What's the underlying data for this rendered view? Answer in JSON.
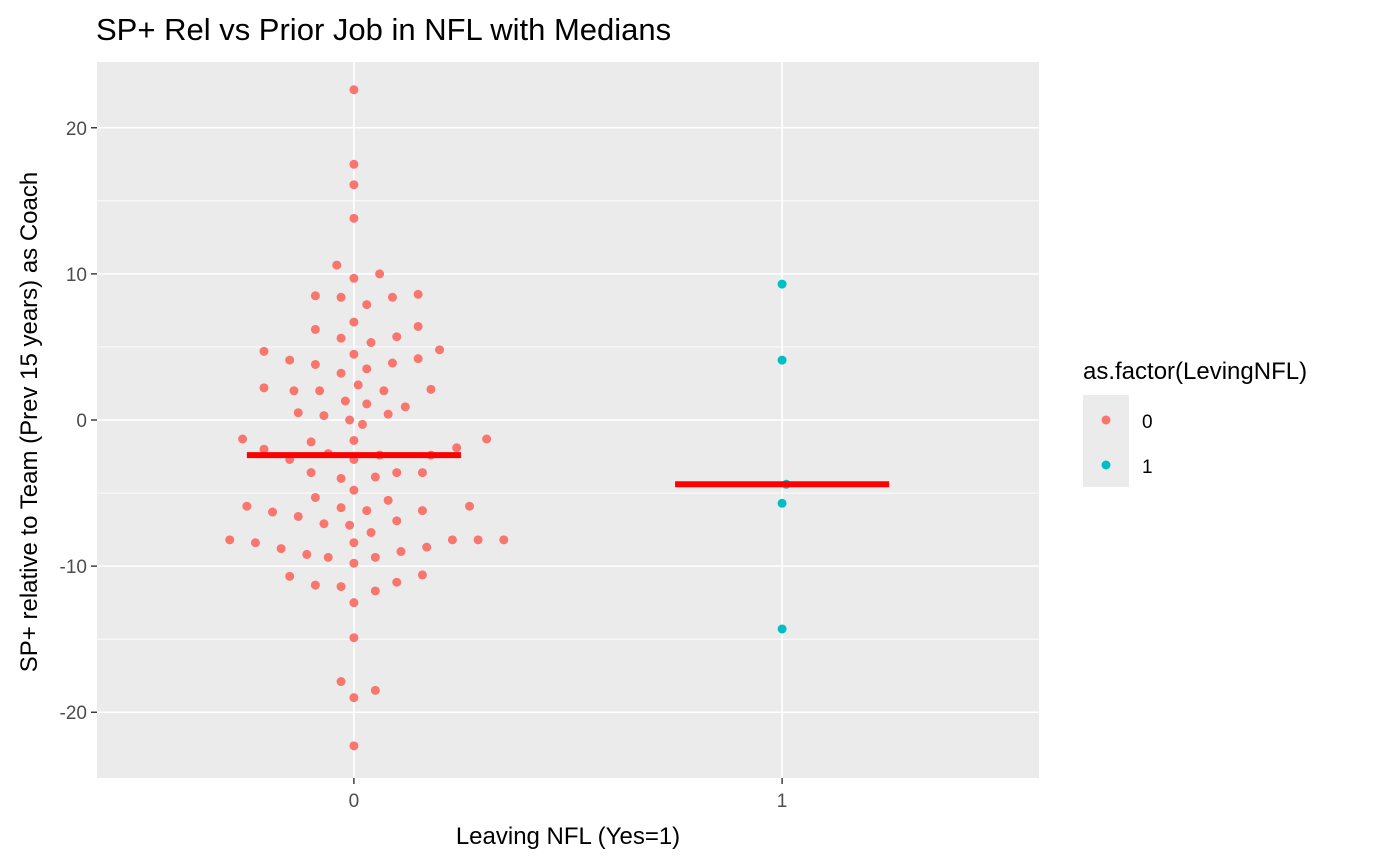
{
  "chart_data": {
    "type": "scatter",
    "subtype": "dotplot",
    "title": "SP+ Rel vs Prior Job in NFL with Medians",
    "xlabel": "Leaving NFL (Yes=1)",
    "ylabel": "SP+ relative to Team (Prev 15 years) as Coach",
    "categories": [
      "0",
      "1"
    ],
    "ylim": [
      -24.5,
      24.5
    ],
    "y_ticks": [
      -20,
      -10,
      0,
      10,
      20
    ],
    "y_tick_labels": [
      "-20",
      "-10",
      "0",
      "10",
      "20"
    ],
    "grid": true,
    "legend": {
      "title": "as.factor(LevingNFL)",
      "position": "right",
      "entries": [
        {
          "label": "0",
          "color": "#F8766D"
        },
        {
          "label": "1",
          "color": "#00BFC4"
        }
      ]
    },
    "series": [
      {
        "name": "0",
        "color": "#F8766D",
        "points": [
          [
            0,
            22.6
          ],
          [
            0,
            17.5
          ],
          [
            0,
            16.1
          ],
          [
            0,
            13.8
          ],
          [
            -0.04,
            10.6
          ],
          [
            0,
            9.7
          ],
          [
            0.06,
            10.0
          ],
          [
            -0.09,
            8.5
          ],
          [
            -0.03,
            8.4
          ],
          [
            0.03,
            7.9
          ],
          [
            0.09,
            8.4
          ],
          [
            0.15,
            8.6
          ],
          [
            -0.09,
            6.2
          ],
          [
            0,
            6.7
          ],
          [
            -0.03,
            5.6
          ],
          [
            0.04,
            5.3
          ],
          [
            0.1,
            5.7
          ],
          [
            0.15,
            6.4
          ],
          [
            -0.21,
            4.7
          ],
          [
            -0.15,
            4.1
          ],
          [
            -0.09,
            3.8
          ],
          [
            -0.03,
            3.2
          ],
          [
            0,
            4.5
          ],
          [
            0.03,
            3.5
          ],
          [
            0.09,
            3.9
          ],
          [
            0.15,
            4.2
          ],
          [
            0.2,
            4.8
          ],
          [
            -0.21,
            2.2
          ],
          [
            -0.14,
            2.0
          ],
          [
            -0.08,
            2.0
          ],
          [
            -0.02,
            1.3
          ],
          [
            0.01,
            2.4
          ],
          [
            0.03,
            1.1
          ],
          [
            0.07,
            2.0
          ],
          [
            0.12,
            0.9
          ],
          [
            0.18,
            2.1
          ],
          [
            -0.13,
            0.5
          ],
          [
            -0.07,
            0.3
          ],
          [
            -0.01,
            0.0
          ],
          [
            0.02,
            -0.3
          ],
          [
            0.08,
            0.4
          ],
          [
            -0.26,
            -1.3
          ],
          [
            -0.21,
            -2.0
          ],
          [
            -0.15,
            -2.7
          ],
          [
            -0.1,
            -1.5
          ],
          [
            -0.06,
            -2.3
          ],
          [
            0,
            -1.4
          ],
          [
            0,
            -2.7
          ],
          [
            0.06,
            -2.4
          ],
          [
            0.18,
            -2.4
          ],
          [
            0.24,
            -1.9
          ],
          [
            0.31,
            -1.3
          ],
          [
            -0.1,
            -3.6
          ],
          [
            -0.03,
            -4.0
          ],
          [
            0.05,
            -3.9
          ],
          [
            0.1,
            -3.6
          ],
          [
            0.16,
            -3.6
          ],
          [
            -0.09,
            -5.3
          ],
          [
            0,
            -4.8
          ],
          [
            0.08,
            -5.5
          ],
          [
            -0.25,
            -5.9
          ],
          [
            -0.19,
            -6.3
          ],
          [
            -0.13,
            -6.6
          ],
          [
            -0.07,
            -7.1
          ],
          [
            -0.03,
            -6.0
          ],
          [
            -0.01,
            -7.2
          ],
          [
            0.03,
            -6.2
          ],
          [
            0.04,
            -7.7
          ],
          [
            0.1,
            -6.9
          ],
          [
            0.16,
            -6.2
          ],
          [
            0.27,
            -5.9
          ],
          [
            -0.29,
            -8.2
          ],
          [
            -0.23,
            -8.4
          ],
          [
            -0.17,
            -8.8
          ],
          [
            -0.11,
            -9.2
          ],
          [
            -0.06,
            -9.4
          ],
          [
            0,
            -8.4
          ],
          [
            0,
            -9.8
          ],
          [
            0.05,
            -9.4
          ],
          [
            0.11,
            -9.0
          ],
          [
            0.17,
            -8.7
          ],
          [
            0.23,
            -8.2
          ],
          [
            0.29,
            -8.2
          ],
          [
            0.35,
            -8.2
          ],
          [
            -0.15,
            -10.7
          ],
          [
            -0.09,
            -11.3
          ],
          [
            -0.03,
            -11.4
          ],
          [
            0,
            -12.5
          ],
          [
            0.05,
            -11.7
          ],
          [
            0.1,
            -11.1
          ],
          [
            0.16,
            -10.6
          ],
          [
            0,
            -14.9
          ],
          [
            -0.03,
            -17.9
          ],
          [
            0,
            -19.0
          ],
          [
            0.05,
            -18.5
          ],
          [
            0,
            -22.3
          ]
        ]
      },
      {
        "name": "1",
        "color": "#00BFC4",
        "points": [
          [
            1,
            9.3
          ],
          [
            1,
            4.1
          ],
          [
            1.01,
            -4.4
          ],
          [
            1,
            -5.7
          ],
          [
            1,
            -14.3
          ]
        ]
      }
    ],
    "medians": [
      {
        "category": "0",
        "value": -2.4,
        "color": "#FF0000"
      },
      {
        "category": "1",
        "value": -4.4,
        "color": "#FF0000"
      }
    ]
  }
}
